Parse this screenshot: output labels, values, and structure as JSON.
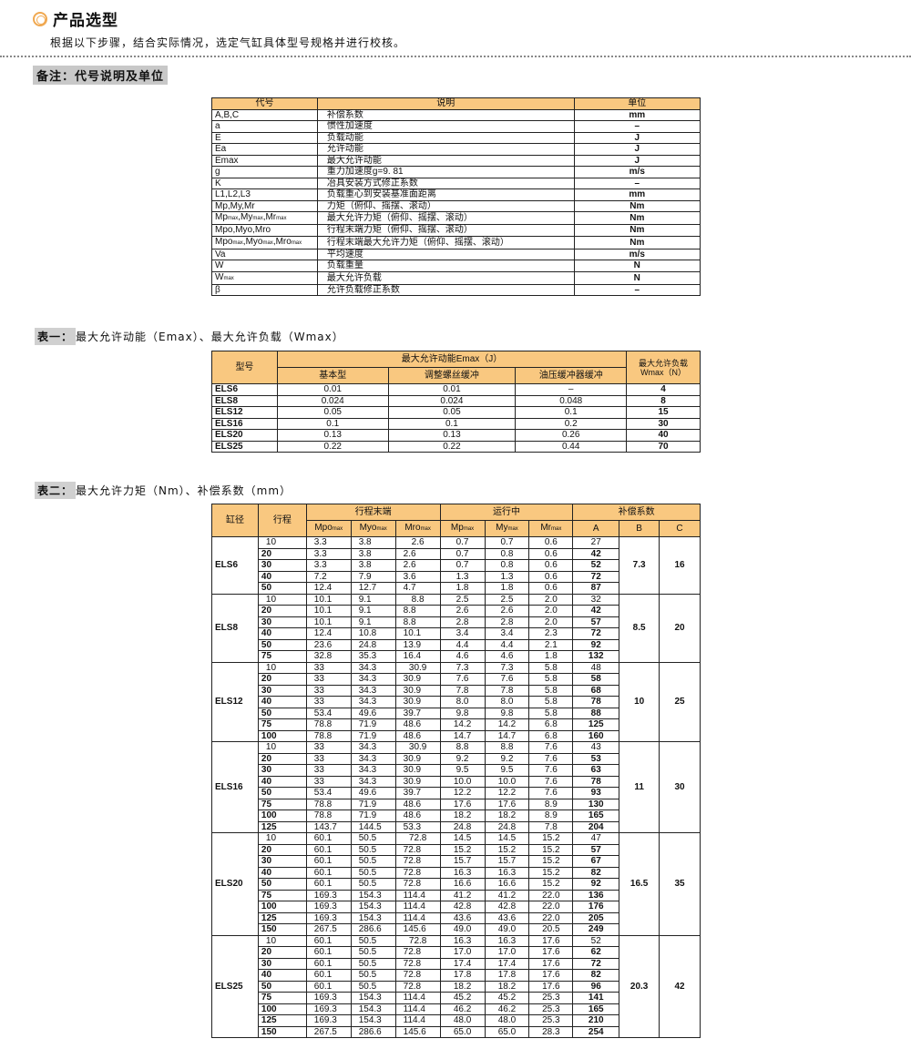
{
  "header": {
    "title": "产品选型",
    "intro": "根据以下步骤，结合实际情况，选定气缸具体型号规格并进行校核。",
    "icon": "double-circle-icon",
    "accent": "#f0a850"
  },
  "note_tag": "备注：代号说明及单位",
  "codes": {
    "headers": [
      "代号",
      "说明",
      "单位"
    ],
    "rows": [
      [
        [
          [
            "A,B,C",
            ""
          ]
        ],
        "补偿系数",
        "mm"
      ],
      [
        [
          [
            "a",
            ""
          ]
        ],
        "惯性加速度",
        "–"
      ],
      [
        [
          [
            "E",
            ""
          ]
        ],
        "负载动能",
        "J"
      ],
      [
        [
          [
            "Ea",
            ""
          ]
        ],
        "允许动能",
        "J"
      ],
      [
        [
          [
            "Emax",
            ""
          ]
        ],
        "最大允许动能",
        "J"
      ],
      [
        [
          [
            "g",
            ""
          ]
        ],
        "重力加速度g=9. 81",
        "m/s"
      ],
      [
        [
          [
            "K",
            ""
          ]
        ],
        "冶具安装方式修正系数",
        "–"
      ],
      [
        [
          [
            "L1,L2,L3",
            ""
          ]
        ],
        "负载重心到安装基准面距离",
        "mm"
      ],
      [
        [
          [
            "Mp,My,Mr",
            ""
          ]
        ],
        "力矩（俯仰、摇摆、滚动）",
        "Nm"
      ],
      [
        [
          [
            "Mp",
            "max"
          ],
          [
            ",My",
            "max"
          ],
          [
            ",Mr",
            "max"
          ]
        ],
        "最大允许力矩（俯仰、摇摆、滚动）",
        "Nm"
      ],
      [
        [
          [
            "Mpo,Myo,Mro",
            ""
          ]
        ],
        "行程末端力矩（俯仰、摇摆、滚动）",
        "Nm"
      ],
      [
        [
          [
            "Mpo",
            "max"
          ],
          [
            ",Myo",
            "max"
          ],
          [
            ",Mro",
            "max"
          ]
        ],
        "行程末端最大允许力矩（俯仰、摇摆、滚动）",
        "Nm"
      ],
      [
        [
          [
            "Va",
            ""
          ]
        ],
        "平均速度",
        "m/s"
      ],
      [
        [
          [
            "W",
            ""
          ]
        ],
        "负载重量",
        "N"
      ],
      [
        [
          [
            "W",
            "max"
          ]
        ],
        "最大允许负载",
        "N"
      ],
      [
        [
          [
            "β",
            ""
          ]
        ],
        "允许负载修正系数",
        "–"
      ]
    ]
  },
  "table1": {
    "caption_label": "表一：",
    "caption": "最大允许动能（Emax）、最大允许负载（Wmax）",
    "h_model": "型号",
    "h_emax": "最大允许动能Emax（J）",
    "h_wmax": "最大允许负载Wmax（N）",
    "sub_headers": [
      "基本型",
      "调整螺丝缓冲",
      "油压缓冲器缓冲"
    ],
    "rows": [
      [
        "ELS6",
        "0.01",
        "0.01",
        "–",
        "4"
      ],
      [
        "ELS8",
        "0.024",
        "0.024",
        "0.048",
        "8"
      ],
      [
        "ELS12",
        "0.05",
        "0.05",
        "0.1",
        "15"
      ],
      [
        "ELS16",
        "0.1",
        "0.1",
        "0.2",
        "30"
      ],
      [
        "ELS20",
        "0.13",
        "0.13",
        "0.26",
        "40"
      ],
      [
        "ELS25",
        "0.22",
        "0.22",
        "0.44",
        "70"
      ]
    ]
  },
  "table2": {
    "caption_label": "表二：",
    "caption": "最大允许力矩（Nm）、补偿系数（mm）",
    "h_bore": "缸径",
    "h_stroke": "行程",
    "h_end": "行程末端",
    "h_run": "运行中",
    "h_comp": "补偿系数",
    "sub_headers": [
      [
        "Mpo",
        "max"
      ],
      [
        "Myo",
        "max"
      ],
      [
        "Mro",
        "max"
      ],
      [
        "Mp",
        "max"
      ],
      [
        "My",
        "max"
      ],
      [
        "Mr",
        "max"
      ],
      [
        "A",
        ""
      ],
      [
        "B",
        ""
      ],
      [
        "C",
        ""
      ]
    ],
    "groups": [
      {
        "model": "ELS6",
        "B": "7.3",
        "C": "16",
        "rows": [
          [
            "10",
            "3.3",
            "3.8",
            "2.6",
            "0.7",
            "0.7",
            "0.6",
            "27"
          ],
          [
            "20",
            "3.3",
            "3.8",
            "2.6",
            "0.7",
            "0.8",
            "0.6",
            "42"
          ],
          [
            "30",
            "3.3",
            "3.8",
            "2.6",
            "0.7",
            "0.8",
            "0.6",
            "52"
          ],
          [
            "40",
            "7.2",
            "7.9",
            "3.6",
            "1.3",
            "1.3",
            "0.6",
            "72"
          ],
          [
            "50",
            "12.4",
            "12.7",
            "4.7",
            "1.8",
            "1.8",
            "0.6",
            "87"
          ]
        ]
      },
      {
        "model": "ELS8",
        "B": "8.5",
        "C": "20",
        "rows": [
          [
            "10",
            "10.1",
            "9.1",
            "8.8",
            "2.5",
            "2.5",
            "2.0",
            "32"
          ],
          [
            "20",
            "10.1",
            "9.1",
            "8.8",
            "2.6",
            "2.6",
            "2.0",
            "42"
          ],
          [
            "30",
            "10.1",
            "9.1",
            "8.8",
            "2.8",
            "2.8",
            "2.0",
            "57"
          ],
          [
            "40",
            "12.4",
            "10.8",
            "10.1",
            "3.4",
            "3.4",
            "2.3",
            "72"
          ],
          [
            "50",
            "23.6",
            "24.8",
            "13.9",
            "4.4",
            "4.4",
            "2.1",
            "92"
          ],
          [
            "75",
            "32.8",
            "35.3",
            "16.4",
            "4.6",
            "4.6",
            "1.8",
            "132"
          ]
        ]
      },
      {
        "model": "ELS12",
        "B": "10",
        "C": "25",
        "rows": [
          [
            "10",
            "33",
            "34.3",
            "30.9",
            "7.3",
            "7.3",
            "5.8",
            "48"
          ],
          [
            "20",
            "33",
            "34.3",
            "30.9",
            "7.6",
            "7.6",
            "5.8",
            "58"
          ],
          [
            "30",
            "33",
            "34.3",
            "30.9",
            "7.8",
            "7.8",
            "5.8",
            "68"
          ],
          [
            "40",
            "33",
            "34.3",
            "30.9",
            "8.0",
            "8.0",
            "5.8",
            "78"
          ],
          [
            "50",
            "53.4",
            "49.6",
            "39.7",
            "9.8",
            "9.8",
            "5.8",
            "88"
          ],
          [
            "75",
            "78.8",
            "71.9",
            "48.6",
            "14.2",
            "14.2",
            "6.8",
            "125"
          ],
          [
            "100",
            "78.8",
            "71.9",
            "48.6",
            "14.7",
            "14.7",
            "6.8",
            "160"
          ]
        ]
      },
      {
        "model": "ELS16",
        "B": "11",
        "C": "30",
        "rows": [
          [
            "10",
            "33",
            "34.3",
            "30.9",
            "8.8",
            "8.8",
            "7.6",
            "43"
          ],
          [
            "20",
            "33",
            "34.3",
            "30.9",
            "9.2",
            "9.2",
            "7.6",
            "53"
          ],
          [
            "30",
            "33",
            "34.3",
            "30.9",
            "9.5",
            "9.5",
            "7.6",
            "63"
          ],
          [
            "40",
            "33",
            "34.3",
            "30.9",
            "10.0",
            "10.0",
            "7.6",
            "78"
          ],
          [
            "50",
            "53.4",
            "49.6",
            "39.7",
            "12.2",
            "12.2",
            "7.6",
            "93"
          ],
          [
            "75",
            "78.8",
            "71.9",
            "48.6",
            "17.6",
            "17.6",
            "8.9",
            "130"
          ],
          [
            "100",
            "78.8",
            "71.9",
            "48.6",
            "18.2",
            "18.2",
            "8.9",
            "165"
          ],
          [
            "125",
            "143.7",
            "144.5",
            "53.3",
            "24.8",
            "24.8",
            "7.8",
            "204"
          ]
        ]
      },
      {
        "model": "ELS20",
        "B": "16.5",
        "C": "35",
        "rows": [
          [
            "10",
            "60.1",
            "50.5",
            "72.8",
            "14.5",
            "14.5",
            "15.2",
            "47"
          ],
          [
            "20",
            "60.1",
            "50.5",
            "72.8",
            "15.2",
            "15.2",
            "15.2",
            "57"
          ],
          [
            "30",
            "60.1",
            "50.5",
            "72.8",
            "15.7",
            "15.7",
            "15.2",
            "67"
          ],
          [
            "40",
            "60.1",
            "50.5",
            "72.8",
            "16.3",
            "16.3",
            "15.2",
            "82"
          ],
          [
            "50",
            "60.1",
            "50.5",
            "72.8",
            "16.6",
            "16.6",
            "15.2",
            "92"
          ],
          [
            "75",
            "169.3",
            "154.3",
            "114.4",
            "41.2",
            "41.2",
            "22.0",
            "136"
          ],
          [
            "100",
            "169.3",
            "154.3",
            "114.4",
            "42.8",
            "42.8",
            "22.0",
            "176"
          ],
          [
            "125",
            "169.3",
            "154.3",
            "114.4",
            "43.6",
            "43.6",
            "22.0",
            "205"
          ],
          [
            "150",
            "267.5",
            "286.6",
            "145.6",
            "49.0",
            "49.0",
            "20.5",
            "249"
          ]
        ]
      },
      {
        "model": "ELS25",
        "B": "20.3",
        "C": "42",
        "rows": [
          [
            "10",
            "60.1",
            "50.5",
            "72.8",
            "16.3",
            "16.3",
            "17.6",
            "52"
          ],
          [
            "20",
            "60.1",
            "50.5",
            "72.8",
            "17.0",
            "17.0",
            "17.6",
            "62"
          ],
          [
            "30",
            "60.1",
            "50.5",
            "72.8",
            "17.4",
            "17.4",
            "17.6",
            "72"
          ],
          [
            "40",
            "60.1",
            "50.5",
            "72.8",
            "17.8",
            "17.8",
            "17.6",
            "82"
          ],
          [
            "50",
            "60.1",
            "50.5",
            "72.8",
            "18.2",
            "18.2",
            "17.6",
            "96"
          ],
          [
            "75",
            "169.3",
            "154.3",
            "114.4",
            "45.2",
            "45.2",
            "25.3",
            "141"
          ],
          [
            "100",
            "169.3",
            "154.3",
            "114.4",
            "46.2",
            "46.2",
            "25.3",
            "165"
          ],
          [
            "125",
            "169.3",
            "154.3",
            "114.4",
            "48.0",
            "48.0",
            "25.3",
            "210"
          ],
          [
            "150",
            "267.5",
            "286.6",
            "145.6",
            "65.0",
            "65.0",
            "28.3",
            "254"
          ]
        ]
      }
    ]
  },
  "colors": {
    "header_bg": "#f9c880",
    "tag_bg": "#c8c8c8"
  }
}
